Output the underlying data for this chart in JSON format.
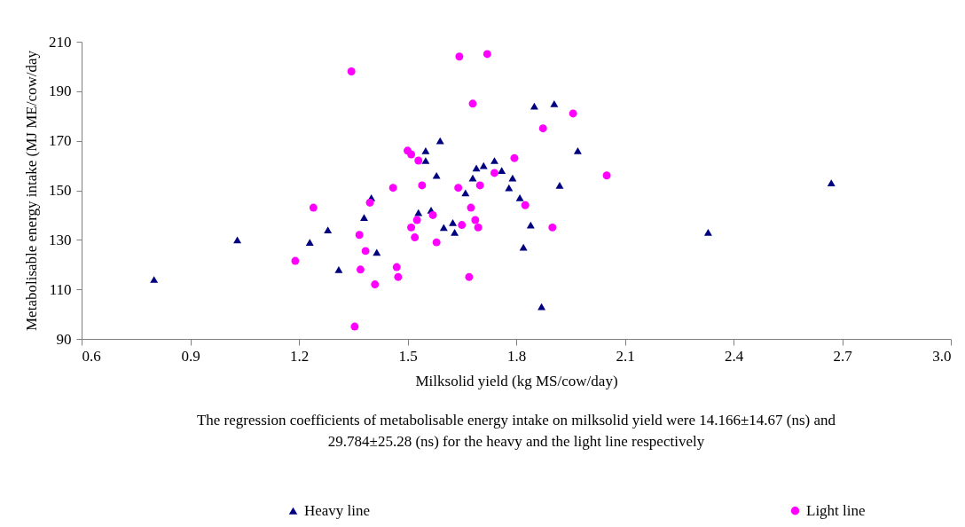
{
  "chart_data": {
    "type": "scatter",
    "xlabel": "Milksolid yield (kg MS/cow/day)",
    "ylabel": "Metabolisable energy intake (MJ ME/cow/day",
    "annotations": [
      "The regression coefficients of metabolisable energy intake on milksolid yield were 14.166±14.67 (ns) and\n29.784±25.28 (ns) for the heavy and the light line respectively"
    ],
    "xlim": [
      0.6,
      3.0
    ],
    "xticks": [
      0.6,
      0.9,
      1.2,
      1.5,
      1.8,
      2.1,
      2.4,
      2.7,
      {
        "value": 3,
        "label": "3.0"
      }
    ],
    "ylim": [
      90,
      210
    ],
    "yticks": [
      90,
      110,
      130,
      150,
      170,
      190,
      210
    ],
    "grid": false,
    "legend": "bottom",
    "series": [
      {
        "name": "Heavy line",
        "color": "#000080",
        "marker": "triangle",
        "x": [
          0.8,
          1.03,
          1.23,
          1.28,
          1.31,
          1.38,
          1.4,
          1.415,
          1.53,
          1.55,
          1.55,
          1.59,
          1.58,
          1.565,
          1.6,
          1.625,
          1.63,
          1.66,
          1.68,
          1.69,
          1.71,
          1.74,
          1.76,
          1.78,
          1.79,
          1.81,
          1.82,
          1.84,
          1.85,
          1.905,
          1.92,
          1.97,
          1.87,
          2.33,
          2.67
        ],
        "values": [
          114,
          130,
          129,
          134,
          118,
          139,
          147,
          125,
          141,
          162,
          166,
          170,
          156,
          142,
          135,
          137,
          133,
          149,
          155,
          159,
          160,
          162,
          158,
          151,
          155,
          147,
          127,
          136,
          184,
          185,
          152,
          166,
          103,
          133,
          153
        ]
      },
      {
        "name": "Light line",
        "color": "#ff00ff",
        "marker": "circle",
        "x": [
          1.345,
          1.643,
          1.72,
          1.68,
          1.5,
          1.51,
          1.53,
          1.74,
          1.54,
          1.46,
          1.64,
          1.7,
          1.396,
          1.24,
          1.675,
          1.57,
          1.526,
          1.65,
          1.687,
          1.695,
          1.51,
          1.367,
          1.52,
          1.58,
          1.384,
          1.19,
          1.47,
          1.37,
          1.474,
          1.67,
          1.41,
          1.354,
          1.957,
          1.874,
          1.795,
          1.825,
          1.9,
          2.05
        ],
        "values": [
          198,
          204,
          205,
          185,
          166,
          164.5,
          162,
          157,
          152,
          151,
          151,
          152,
          145,
          143,
          143,
          140,
          138,
          136,
          138,
          135,
          135,
          132,
          131,
          129,
          125.5,
          121.5,
          119,
          118,
          115,
          115,
          112,
          95,
          181,
          175,
          163,
          144,
          135,
          156
        ]
      }
    ]
  }
}
